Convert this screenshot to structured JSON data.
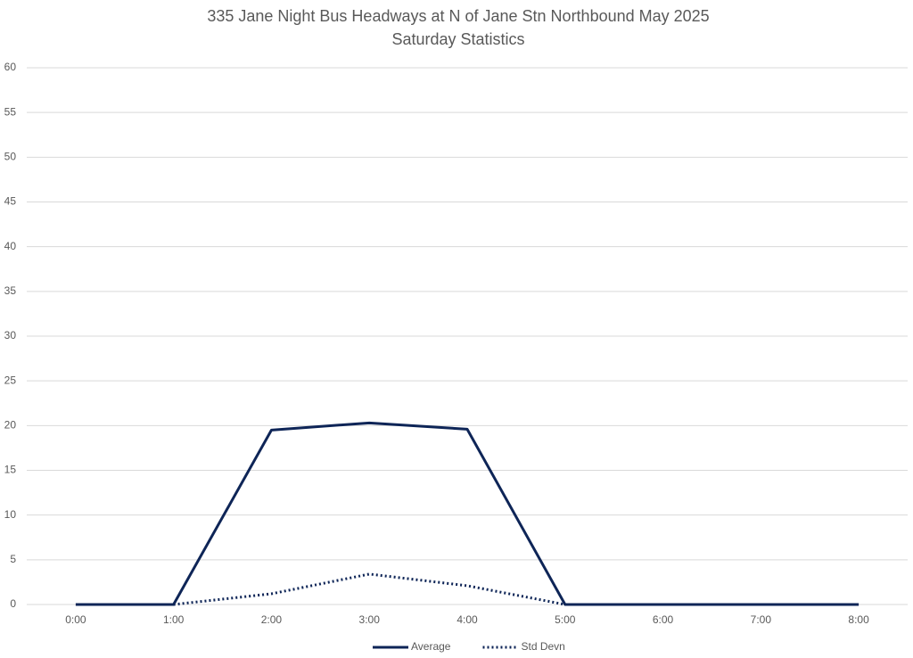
{
  "chart_data": {
    "type": "line",
    "title": "335 Jane Night Bus Headways at N of Jane Stn Northbound May 2025",
    "subtitle": "Saturday Statistics",
    "categories": [
      "0:00",
      "1:00",
      "2:00",
      "3:00",
      "4:00",
      "5:00",
      "6:00",
      "7:00",
      "8:00"
    ],
    "series": [
      {
        "name": "Average",
        "color": "#0e2557",
        "dash": "solid",
        "values": [
          0,
          0,
          19.5,
          20.3,
          19.6,
          0,
          0,
          0,
          0
        ]
      },
      {
        "name": "Std Devn",
        "color": "#0e2557",
        "dash": "dotted",
        "values": [
          null,
          0,
          1.2,
          3.4,
          2.1,
          0,
          null,
          null,
          null
        ]
      }
    ],
    "ylim": [
      0,
      60
    ],
    "yticks": [
      0,
      5,
      10,
      15,
      20,
      25,
      30,
      35,
      40,
      45,
      50,
      55,
      60
    ],
    "grid": true,
    "legend": "bottom"
  }
}
